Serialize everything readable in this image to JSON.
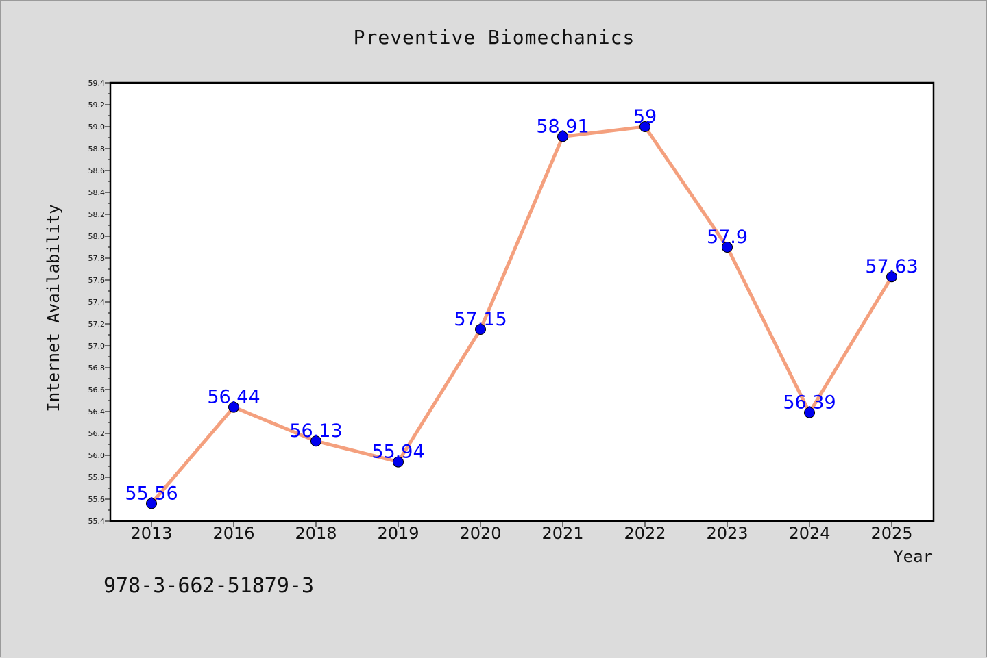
{
  "chart_data": {
    "type": "line",
    "title": "Preventive Biomechanics",
    "xlabel": "Year",
    "ylabel": "Internet Availability",
    "categories": [
      "2013",
      "2016",
      "2018",
      "2019",
      "2020",
      "2021",
      "2022",
      "2023",
      "2024",
      "2025"
    ],
    "values": [
      55.56,
      56.44,
      56.13,
      55.94,
      57.15,
      58.91,
      59,
      57.9,
      56.39,
      57.63
    ],
    "data_labels": [
      "55.56",
      "56.44",
      "56.13",
      "55.94",
      "57.15",
      "58.91",
      "59",
      "57.9",
      "56.39",
      "57.63"
    ],
    "ylim": [
      55.4,
      59.4
    ],
    "yticks": [
      "55.4",
      "55.6",
      "55.8",
      "56.0",
      "56.2",
      "56.4",
      "56.6",
      "56.8",
      "57.0",
      "57.2",
      "57.4",
      "57.6",
      "57.8",
      "58.0",
      "58.2",
      "58.4",
      "58.6",
      "58.8",
      "59.0",
      "59.2",
      "59.4"
    ],
    "grid": false,
    "legend": "none",
    "line_color": "#f4a07e",
    "marker_color": "#0000ee",
    "label_color": "#0000ff"
  },
  "footer": {
    "isbn": "978-3-662-51879-3"
  }
}
